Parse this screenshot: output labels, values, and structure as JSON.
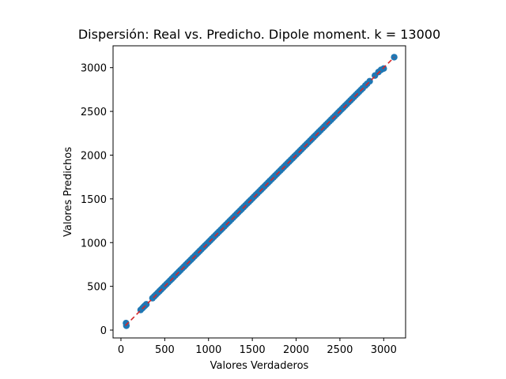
{
  "chart_data": {
    "type": "scatter",
    "title": "Dispersión: Real vs. Predicho. Dipole moment. k = 13000",
    "xlabel": "Valores Verdaderos",
    "ylabel": "Valores Predichos",
    "xlim": [
      -90,
      3250
    ],
    "ylim": [
      -90,
      3250
    ],
    "xticks": [
      0,
      500,
      1000,
      1500,
      2000,
      2500,
      3000
    ],
    "yticks": [
      0,
      500,
      1000,
      1500,
      2000,
      2500,
      3000
    ],
    "grid": false,
    "legend": "none",
    "colors": {
      "points": "#1f77b4",
      "reference_line": "#d62728"
    },
    "reference_line": {
      "style": "dashed",
      "from": [
        50,
        50
      ],
      "to": [
        3120,
        3120
      ]
    },
    "points": {
      "x": [
        58,
        62,
        225,
        245,
        262,
        275,
        290,
        360,
        380,
        400,
        420,
        440,
        460,
        480,
        500,
        520,
        540,
        560,
        580,
        600,
        620,
        640,
        660,
        680,
        700,
        720,
        740,
        760,
        780,
        800,
        820,
        840,
        860,
        880,
        900,
        920,
        940,
        960,
        980,
        1000,
        1020,
        1040,
        1060,
        1080,
        1100,
        1120,
        1140,
        1160,
        1180,
        1200,
        1220,
        1240,
        1260,
        1280,
        1300,
        1320,
        1340,
        1360,
        1380,
        1400,
        1420,
        1440,
        1460,
        1480,
        1500,
        1520,
        1540,
        1560,
        1580,
        1600,
        1620,
        1640,
        1660,
        1680,
        1700,
        1720,
        1740,
        1760,
        1780,
        1800,
        1820,
        1840,
        1860,
        1880,
        1900,
        1920,
        1940,
        1960,
        1980,
        2000,
        2020,
        2040,
        2060,
        2080,
        2100,
        2120,
        2140,
        2160,
        2180,
        2200,
        2220,
        2240,
        2260,
        2280,
        2300,
        2320,
        2340,
        2360,
        2380,
        2400,
        2420,
        2440,
        2460,
        2480,
        2500,
        2520,
        2540,
        2560,
        2580,
        2600,
        2620,
        2640,
        2660,
        2680,
        2700,
        2720,
        2740,
        2760,
        2790,
        2810,
        2840,
        2900,
        2940,
        2970,
        3000,
        3120
      ],
      "y": [
        80,
        50,
        230,
        250,
        268,
        280,
        295,
        365,
        385,
        405,
        425,
        445,
        465,
        485,
        505,
        525,
        545,
        565,
        585,
        605,
        625,
        645,
        665,
        685,
        705,
        725,
        745,
        765,
        785,
        805,
        825,
        845,
        865,
        885,
        905,
        925,
        945,
        965,
        985,
        1005,
        1025,
        1045,
        1065,
        1085,
        1105,
        1125,
        1145,
        1165,
        1185,
        1205,
        1225,
        1245,
        1265,
        1285,
        1305,
        1325,
        1345,
        1365,
        1385,
        1405,
        1425,
        1445,
        1465,
        1485,
        1505,
        1525,
        1545,
        1565,
        1585,
        1605,
        1625,
        1645,
        1665,
        1685,
        1705,
        1725,
        1745,
        1765,
        1785,
        1805,
        1825,
        1845,
        1865,
        1885,
        1905,
        1925,
        1945,
        1965,
        1985,
        2005,
        2025,
        2045,
        2065,
        2085,
        2105,
        2125,
        2145,
        2165,
        2185,
        2205,
        2225,
        2245,
        2265,
        2285,
        2305,
        2325,
        2345,
        2365,
        2385,
        2405,
        2425,
        2445,
        2465,
        2485,
        2505,
        2525,
        2545,
        2565,
        2585,
        2605,
        2625,
        2645,
        2665,
        2685,
        2705,
        2725,
        2745,
        2765,
        2795,
        2815,
        2845,
        2910,
        2950,
        2975,
        2990,
        3120
      ]
    }
  }
}
